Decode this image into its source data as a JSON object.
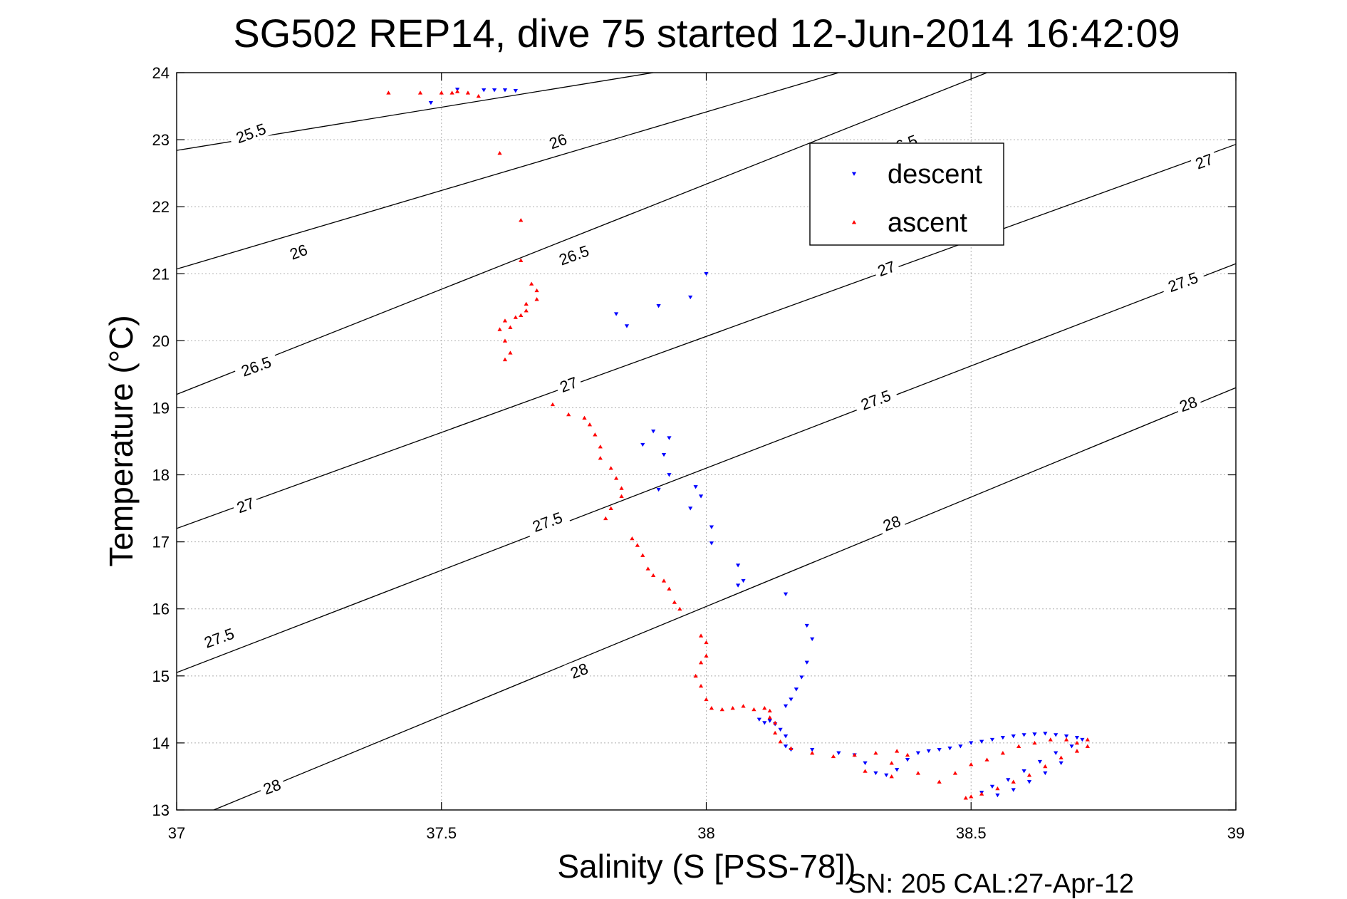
{
  "chart_data": {
    "type": "scatter",
    "title": "SG502 REP14, dive 75 started 12-Jun-2014 16:42:09",
    "xlabel": "Salinity (S [PSS-78])",
    "ylabel": "Temperature (°C)",
    "footer": "SN: 205  CAL:27-Apr-12",
    "xlim": [
      37,
      39
    ],
    "ylim": [
      13,
      24
    ],
    "xticks": [
      "37",
      "37.5",
      "38",
      "38.5",
      "39"
    ],
    "yticks": [
      "13",
      "14",
      "15",
      "16",
      "17",
      "18",
      "19",
      "20",
      "21",
      "22",
      "23",
      "24"
    ],
    "grid": true,
    "legend_position": "top-right",
    "contours": {
      "color": "#000000",
      "levels": [
        25.5,
        26,
        26.5,
        27,
        27.5,
        28
      ],
      "lines": [
        {
          "level": "25.5",
          "points": [
            [
              37.0,
              22.84
            ],
            [
              37.9,
              24.0
            ]
          ]
        },
        {
          "level": "26",
          "points": [
            [
              37.0,
              21.07
            ],
            [
              38.25,
              24.0
            ]
          ]
        },
        {
          "level": "26.5",
          "points": [
            [
              37.0,
              19.2
            ],
            [
              38.53,
              24.0
            ]
          ]
        },
        {
          "level": "27",
          "points": [
            [
              37.0,
              17.2
            ],
            [
              39.0,
              22.93
            ]
          ]
        },
        {
          "level": "27.5",
          "points": [
            [
              37.0,
              15.05
            ],
            [
              39.0,
              21.15
            ]
          ]
        },
        {
          "level": "28",
          "points": [
            [
              37.07,
              13.0
            ],
            [
              39.0,
              19.3
            ]
          ]
        }
      ],
      "labels": [
        {
          "text": "25.5",
          "x": 37.14,
          "y": 23.1
        },
        {
          "text": "26",
          "x": 37.23,
          "y": 21.33
        },
        {
          "text": "26.5",
          "x": 37.15,
          "y": 19.62
        },
        {
          "text": "27",
          "x": 37.13,
          "y": 17.55
        },
        {
          "text": "27.5",
          "x": 37.08,
          "y": 15.57
        },
        {
          "text": "28",
          "x": 37.18,
          "y": 13.35
        },
        {
          "text": "26",
          "x": 37.72,
          "y": 22.98
        },
        {
          "text": "26.5",
          "x": 37.75,
          "y": 21.28
        },
        {
          "text": "27",
          "x": 37.74,
          "y": 19.35
        },
        {
          "text": "27.5",
          "x": 37.7,
          "y": 17.3
        },
        {
          "text": "28",
          "x": 37.76,
          "y": 15.08
        },
        {
          "text": "26.5",
          "x": 38.37,
          "y": 22.93
        },
        {
          "text": "27",
          "x": 38.34,
          "y": 21.08
        },
        {
          "text": "27.5",
          "x": 38.32,
          "y": 19.12
        },
        {
          "text": "28",
          "x": 38.35,
          "y": 17.28
        },
        {
          "text": "27",
          "x": 38.94,
          "y": 22.68
        },
        {
          "text": "27.5",
          "x": 38.9,
          "y": 20.88
        },
        {
          "text": "28",
          "x": 38.91,
          "y": 19.06
        }
      ]
    },
    "series": [
      {
        "name": "descent",
        "marker": "triangle-down",
        "color": "#0000ff",
        "points": [
          [
            37.48,
            23.55
          ],
          [
            37.53,
            23.75
          ],
          [
            37.58,
            23.74
          ],
          [
            37.6,
            23.74
          ],
          [
            37.62,
            23.74
          ],
          [
            37.64,
            23.73
          ],
          [
            38.0,
            21.0
          ],
          [
            37.97,
            20.65
          ],
          [
            37.91,
            20.52
          ],
          [
            37.83,
            20.4
          ],
          [
            37.85,
            20.22
          ],
          [
            37.9,
            18.65
          ],
          [
            37.93,
            18.55
          ],
          [
            37.88,
            18.45
          ],
          [
            37.92,
            18.3
          ],
          [
            37.93,
            18.0
          ],
          [
            37.91,
            17.78
          ],
          [
            37.98,
            17.82
          ],
          [
            37.99,
            17.68
          ],
          [
            37.97,
            17.5
          ],
          [
            38.01,
            17.22
          ],
          [
            38.01,
            16.98
          ],
          [
            38.06,
            16.65
          ],
          [
            38.07,
            16.42
          ],
          [
            38.06,
            16.35
          ],
          [
            38.15,
            16.22
          ],
          [
            38.19,
            15.75
          ],
          [
            38.2,
            15.55
          ],
          [
            38.19,
            15.2
          ],
          [
            38.18,
            14.98
          ],
          [
            38.17,
            14.8
          ],
          [
            38.16,
            14.65
          ],
          [
            38.15,
            14.55
          ],
          [
            38.1,
            14.35
          ],
          [
            38.11,
            14.3
          ],
          [
            38.12,
            14.33
          ],
          [
            38.13,
            14.28
          ],
          [
            38.14,
            14.2
          ],
          [
            38.15,
            14.1
          ],
          [
            38.15,
            13.95
          ],
          [
            38.16,
            13.9
          ],
          [
            38.2,
            13.9
          ],
          [
            38.25,
            13.85
          ],
          [
            38.28,
            13.82
          ],
          [
            38.3,
            13.7
          ],
          [
            38.32,
            13.55
          ],
          [
            38.34,
            13.52
          ],
          [
            38.36,
            13.6
          ],
          [
            38.38,
            13.75
          ],
          [
            38.4,
            13.85
          ],
          [
            38.42,
            13.88
          ],
          [
            38.44,
            13.9
          ],
          [
            38.46,
            13.92
          ],
          [
            38.48,
            13.95
          ],
          [
            38.5,
            14.0
          ],
          [
            38.52,
            14.02
          ],
          [
            38.54,
            14.05
          ],
          [
            38.56,
            14.08
          ],
          [
            38.58,
            14.1
          ],
          [
            38.6,
            14.12
          ],
          [
            38.62,
            14.13
          ],
          [
            38.64,
            14.14
          ],
          [
            38.66,
            14.12
          ],
          [
            38.68,
            14.1
          ],
          [
            38.7,
            14.08
          ],
          [
            38.71,
            14.05
          ],
          [
            38.69,
            13.95
          ],
          [
            38.66,
            13.85
          ],
          [
            38.63,
            13.72
          ],
          [
            38.6,
            13.58
          ],
          [
            38.57,
            13.45
          ],
          [
            38.54,
            13.35
          ],
          [
            38.52,
            13.26
          ],
          [
            38.55,
            13.22
          ],
          [
            38.58,
            13.3
          ],
          [
            38.61,
            13.42
          ],
          [
            38.64,
            13.55
          ],
          [
            38.67,
            13.7
          ]
        ]
      },
      {
        "name": "ascent",
        "marker": "triangle-up",
        "color": "#ff0000",
        "points": [
          [
            37.4,
            23.7
          ],
          [
            37.46,
            23.7
          ],
          [
            37.5,
            23.7
          ],
          [
            37.52,
            23.7
          ],
          [
            37.53,
            23.72
          ],
          [
            37.55,
            23.7
          ],
          [
            37.57,
            23.65
          ],
          [
            37.61,
            22.8
          ],
          [
            37.65,
            21.8
          ],
          [
            37.65,
            21.2
          ],
          [
            37.67,
            20.85
          ],
          [
            37.68,
            20.75
          ],
          [
            37.68,
            20.62
          ],
          [
            37.66,
            20.55
          ],
          [
            37.66,
            20.45
          ],
          [
            37.65,
            20.38
          ],
          [
            37.64,
            20.35
          ],
          [
            37.62,
            20.3
          ],
          [
            37.63,
            20.2
          ],
          [
            37.61,
            20.17
          ],
          [
            37.62,
            20.0
          ],
          [
            37.63,
            19.82
          ],
          [
            37.62,
            19.72
          ],
          [
            37.71,
            19.05
          ],
          [
            37.74,
            18.9
          ],
          [
            37.77,
            18.85
          ],
          [
            37.78,
            18.75
          ],
          [
            37.79,
            18.6
          ],
          [
            37.8,
            18.42
          ],
          [
            37.8,
            18.25
          ],
          [
            37.82,
            18.1
          ],
          [
            37.83,
            17.95
          ],
          [
            37.84,
            17.8
          ],
          [
            37.84,
            17.68
          ],
          [
            37.82,
            17.5
          ],
          [
            37.81,
            17.35
          ],
          [
            37.86,
            17.05
          ],
          [
            37.87,
            16.95
          ],
          [
            37.88,
            16.8
          ],
          [
            37.89,
            16.6
          ],
          [
            37.9,
            16.5
          ],
          [
            37.92,
            16.42
          ],
          [
            37.93,
            16.3
          ],
          [
            37.94,
            16.1
          ],
          [
            37.95,
            16.0
          ],
          [
            37.99,
            15.6
          ],
          [
            38.0,
            15.5
          ],
          [
            38.0,
            15.3
          ],
          [
            37.99,
            15.2
          ],
          [
            37.98,
            15.0
          ],
          [
            37.99,
            14.85
          ],
          [
            38.0,
            14.65
          ],
          [
            38.01,
            14.52
          ],
          [
            38.03,
            14.5
          ],
          [
            38.05,
            14.52
          ],
          [
            38.07,
            14.55
          ],
          [
            38.09,
            14.5
          ],
          [
            38.11,
            14.52
          ],
          [
            38.12,
            14.48
          ],
          [
            38.12,
            14.38
          ],
          [
            38.13,
            14.3
          ],
          [
            38.13,
            14.15
          ],
          [
            38.14,
            14.02
          ],
          [
            38.16,
            13.92
          ],
          [
            38.2,
            13.85
          ],
          [
            38.24,
            13.8
          ],
          [
            38.28,
            13.82
          ],
          [
            38.32,
            13.85
          ],
          [
            38.36,
            13.88
          ],
          [
            38.38,
            13.82
          ],
          [
            38.35,
            13.7
          ],
          [
            38.3,
            13.58
          ],
          [
            38.35,
            13.5
          ],
          [
            38.4,
            13.55
          ],
          [
            38.44,
            13.42
          ],
          [
            38.47,
            13.55
          ],
          [
            38.5,
            13.68
          ],
          [
            38.53,
            13.75
          ],
          [
            38.56,
            13.85
          ],
          [
            38.59,
            13.95
          ],
          [
            38.62,
            14.0
          ],
          [
            38.65,
            14.05
          ],
          [
            38.68,
            14.05
          ],
          [
            38.7,
            14.0
          ],
          [
            38.72,
            14.05
          ],
          [
            38.72,
            13.95
          ],
          [
            38.7,
            13.88
          ],
          [
            38.67,
            13.78
          ],
          [
            38.64,
            13.65
          ],
          [
            38.61,
            13.52
          ],
          [
            38.58,
            13.42
          ],
          [
            38.55,
            13.32
          ],
          [
            38.52,
            13.24
          ],
          [
            38.5,
            13.2
          ],
          [
            38.49,
            13.18
          ]
        ]
      }
    ]
  }
}
